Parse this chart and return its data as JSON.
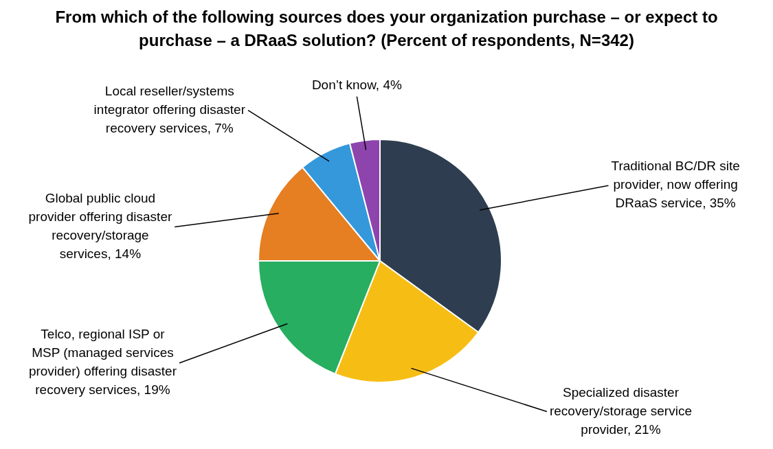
{
  "chart_data": {
    "type": "pie",
    "title": "From which of the following sources does your organization purchase – or expect to purchase – a DRaaS solution? (Percent of respondents, N=342)",
    "categories": [
      "Traditional BC/DR site provider, now offering DRaaS service",
      "Specialized disaster recovery/storage service provider",
      "Telco, regional ISP or MSP (managed services provider) offering disaster recovery services",
      "Global public cloud provider offering disaster recovery/storage services",
      "Local reseller/systems integrator offering disaster recovery services",
      "Don’t know"
    ],
    "values": [
      35,
      21,
      19,
      14,
      7,
      4
    ],
    "value_labels": [
      "35%",
      "21%",
      "19%",
      "14%",
      "7%",
      "4%"
    ],
    "colors": [
      "#2e3e50",
      "#f6be15",
      "#27ae60",
      "#e67e22",
      "#3498db",
      "#8e44ad"
    ],
    "legend": false
  }
}
